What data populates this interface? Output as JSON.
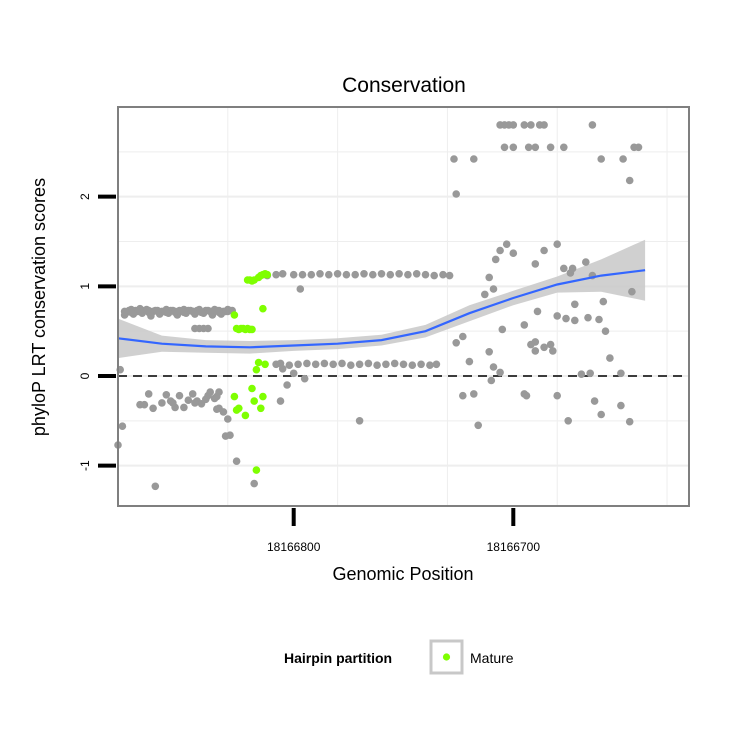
{
  "chart_data": {
    "type": "scatter",
    "title": "Conservation",
    "xlabel": "Genomic Position",
    "ylabel": "phyloP LRT conservation scores",
    "x_reversed": true,
    "xlim": [
      18166880,
      18166620
    ],
    "ylim": [
      -1.45,
      3.0
    ],
    "x_ticks": [
      18166800,
      18166700
    ],
    "x_tick_labels": [
      "18166800",
      "18166700"
    ],
    "y_ticks": [
      -1,
      0,
      1,
      2
    ],
    "y_tick_labels": [
      "-1",
      "0",
      "1",
      "2"
    ],
    "reference_line": {
      "y": 0,
      "style": "dashed"
    },
    "grid": true,
    "legend": {
      "title": "Hairpin partition",
      "placement": "bottom",
      "entries": [
        "Mature"
      ]
    },
    "colors": {
      "background": "#ffffff",
      "point": "#999999",
      "mature": "#7fff00",
      "smooth_line": "#3366ff",
      "ribbon": "#c8c8c8",
      "grid": "#eeeeee",
      "border": "#7f7f7f"
    },
    "series": [
      {
        "name": "Mature",
        "points": [
          [
            18166827,
            0.68
          ],
          [
            18166826,
            0.53
          ],
          [
            18166825,
            0.52
          ],
          [
            18166824,
            0.53
          ],
          [
            18166823,
            0.53
          ],
          [
            18166822,
            0.52
          ],
          [
            18166821,
            0.53
          ],
          [
            18166820,
            0.52
          ],
          [
            18166819,
            0.52
          ],
          [
            18166821,
            1.07
          ],
          [
            18166820,
            1.07
          ],
          [
            18166819,
            1.06
          ],
          [
            18166818,
            1.07
          ],
          [
            18166816,
            1.1
          ],
          [
            18166815,
            1.12
          ],
          [
            18166814,
            1.13
          ],
          [
            18166813,
            1.14
          ],
          [
            18166812,
            1.13
          ],
          [
            18166814,
            0.75
          ],
          [
            18166816,
            0.15
          ],
          [
            18166813,
            0.13
          ],
          [
            18166817,
            0.07
          ],
          [
            18166827,
            -0.23
          ],
          [
            18166826,
            -0.38
          ],
          [
            18166825,
            -0.36
          ],
          [
            18166822,
            -0.44
          ],
          [
            18166819,
            -0.14
          ],
          [
            18166818,
            -0.28
          ],
          [
            18166814,
            -0.23
          ],
          [
            18166815,
            -0.36
          ],
          [
            18166817,
            -1.05
          ]
        ]
      },
      {
        "name": "",
        "points": [
          [
            18166880,
            -0.77
          ],
          [
            18166878,
            -0.56
          ],
          [
            18166879,
            0.07
          ],
          [
            18166877,
            0.68
          ],
          [
            18166876,
            0.71
          ],
          [
            18166874,
            0.74
          ],
          [
            18166872,
            0.73
          ],
          [
            18166870,
            0.75
          ],
          [
            18166868,
            0.73
          ],
          [
            18166866,
            0.73
          ],
          [
            18166864,
            0.72
          ],
          [
            18166862,
            0.73
          ],
          [
            18166860,
            0.72
          ],
          [
            18166858,
            0.74
          ],
          [
            18166856,
            0.73
          ],
          [
            18166854,
            0.71
          ],
          [
            18166852,
            0.73
          ],
          [
            18166850,
            0.74
          ],
          [
            18166848,
            0.73
          ],
          [
            18166846,
            0.72
          ],
          [
            18166844,
            0.73
          ],
          [
            18166842,
            0.71
          ],
          [
            18166840,
            0.73
          ],
          [
            18166838,
            0.72
          ],
          [
            18166836,
            0.74
          ],
          [
            18166834,
            0.73
          ],
          [
            18166832,
            0.72
          ],
          [
            18166830,
            0.74
          ],
          [
            18166828,
            0.73
          ],
          [
            18166875,
            0.73
          ],
          [
            18166871,
            0.72
          ],
          [
            18166867,
            0.74
          ],
          [
            18166863,
            0.73
          ],
          [
            18166859,
            0.72
          ],
          [
            18166855,
            0.73
          ],
          [
            18166851,
            0.72
          ],
          [
            18166847,
            0.73
          ],
          [
            18166843,
            0.74
          ],
          [
            18166839,
            0.73
          ],
          [
            18166835,
            0.73
          ],
          [
            18166831,
            0.72
          ],
          [
            18166829,
            0.73
          ],
          [
            18166873,
            0.69
          ],
          [
            18166869,
            0.7
          ],
          [
            18166865,
            0.67
          ],
          [
            18166861,
            0.69
          ],
          [
            18166857,
            0.7
          ],
          [
            18166853,
            0.68
          ],
          [
            18166849,
            0.7
          ],
          [
            18166845,
            0.69
          ],
          [
            18166841,
            0.7
          ],
          [
            18166837,
            0.68
          ],
          [
            18166833,
            0.69
          ],
          [
            18166845,
            0.53
          ],
          [
            18166843,
            0.53
          ],
          [
            18166841,
            0.53
          ],
          [
            18166839,
            0.53
          ],
          [
            18166877,
            0.72
          ],
          [
            18166874,
            0.71
          ],
          [
            18166870,
            0.72
          ],
          [
            18166866,
            0.71
          ],
          [
            18166862,
            0.72
          ],
          [
            18166858,
            0.71
          ],
          [
            18166854,
            0.72
          ],
          [
            18166850,
            0.71
          ],
          [
            18166846,
            0.72
          ],
          [
            18166842,
            0.71
          ],
          [
            18166838,
            0.72
          ],
          [
            18166834,
            0.71
          ],
          [
            18166830,
            0.72
          ],
          [
            18166870,
            -0.32
          ],
          [
            18166868,
            -0.32
          ],
          [
            18166866,
            -0.2
          ],
          [
            18166864,
            -0.36
          ],
          [
            18166860,
            -0.3
          ],
          [
            18166858,
            -0.21
          ],
          [
            18166856,
            -0.28
          ],
          [
            18166854,
            -0.35
          ],
          [
            18166852,
            -0.22
          ],
          [
            18166850,
            -0.35
          ],
          [
            18166848,
            -0.27
          ],
          [
            18166846,
            -0.2
          ],
          [
            18166844,
            -0.28
          ],
          [
            18166842,
            -0.31
          ],
          [
            18166840,
            -0.26
          ],
          [
            18166839,
            -0.22
          ],
          [
            18166838,
            -0.18
          ],
          [
            18166836,
            -0.25
          ],
          [
            18166835,
            -0.37
          ],
          [
            18166834,
            -0.36
          ],
          [
            18166832,
            -0.4
          ],
          [
            18166830,
            -0.48
          ],
          [
            18166831,
            -0.67
          ],
          [
            18166829,
            -0.66
          ],
          [
            18166826,
            -0.95
          ],
          [
            18166818,
            -1.2
          ],
          [
            18166863,
            -1.23
          ],
          [
            18166834,
            -0.18
          ],
          [
            18166835,
            -0.23
          ],
          [
            18166845,
            -0.3
          ],
          [
            18166855,
            -0.3
          ],
          [
            18166812,
            1.12
          ],
          [
            18166808,
            1.13
          ],
          [
            18166805,
            1.14
          ],
          [
            18166800,
            1.13
          ],
          [
            18166796,
            1.13
          ],
          [
            18166792,
            1.13
          ],
          [
            18166788,
            1.14
          ],
          [
            18166784,
            1.13
          ],
          [
            18166780,
            1.14
          ],
          [
            18166776,
            1.13
          ],
          [
            18166772,
            1.13
          ],
          [
            18166768,
            1.14
          ],
          [
            18166764,
            1.13
          ],
          [
            18166760,
            1.14
          ],
          [
            18166756,
            1.13
          ],
          [
            18166752,
            1.14
          ],
          [
            18166748,
            1.13
          ],
          [
            18166744,
            1.14
          ],
          [
            18166740,
            1.13
          ],
          [
            18166736,
            1.12
          ],
          [
            18166732,
            1.13
          ],
          [
            18166729,
            1.12
          ],
          [
            18166808,
            0.13
          ],
          [
            18166806,
            0.14
          ],
          [
            18166802,
            0.12
          ],
          [
            18166798,
            0.13
          ],
          [
            18166794,
            0.14
          ],
          [
            18166790,
            0.13
          ],
          [
            18166786,
            0.14
          ],
          [
            18166782,
            0.13
          ],
          [
            18166778,
            0.14
          ],
          [
            18166774,
            0.12
          ],
          [
            18166770,
            0.13
          ],
          [
            18166766,
            0.14
          ],
          [
            18166762,
            0.12
          ],
          [
            18166758,
            0.13
          ],
          [
            18166754,
            0.14
          ],
          [
            18166750,
            0.13
          ],
          [
            18166746,
            0.12
          ],
          [
            18166742,
            0.13
          ],
          [
            18166738,
            0.12
          ],
          [
            18166735,
            0.13
          ],
          [
            18166806,
            -0.28
          ],
          [
            18166803,
            -0.1
          ],
          [
            18166797,
            0.97
          ],
          [
            18166805,
            0.08
          ],
          [
            18166800,
            0.03
          ],
          [
            18166795,
            -0.03
          ],
          [
            18166770,
            -0.5
          ],
          [
            18166727,
            2.42
          ],
          [
            18166718,
            2.42
          ],
          [
            18166726,
            2.03
          ],
          [
            18166726,
            0.37
          ],
          [
            18166723,
            0.44
          ],
          [
            18166723,
            -0.22
          ],
          [
            18166716,
            -0.55
          ],
          [
            18166720,
            0.16
          ],
          [
            18166718,
            -0.2
          ],
          [
            18166710,
            -0.05
          ],
          [
            18166713,
            0.91
          ],
          [
            18166711,
            1.1
          ],
          [
            18166709,
            0.97
          ],
          [
            18166708,
            1.3
          ],
          [
            18166706,
            1.4
          ],
          [
            18166703,
            1.47
          ],
          [
            18166700,
            1.37
          ],
          [
            18166705,
            0.52
          ],
          [
            18166709,
            0.1
          ],
          [
            18166711,
            0.27
          ],
          [
            18166706,
            0.04
          ],
          [
            18166690,
            0.28
          ],
          [
            18166690,
            0.38
          ],
          [
            18166692,
            0.35
          ],
          [
            18166695,
            -0.2
          ],
          [
            18166694,
            -0.22
          ],
          [
            18166706,
            2.8
          ],
          [
            18166704,
            2.8
          ],
          [
            18166702,
            2.8
          ],
          [
            18166700,
            2.8
          ],
          [
            18166695,
            2.8
          ],
          [
            18166692,
            2.8
          ],
          [
            18166688,
            2.8
          ],
          [
            18166686,
            2.8
          ],
          [
            18166704,
            2.55
          ],
          [
            18166700,
            2.55
          ],
          [
            18166693,
            2.55
          ],
          [
            18166690,
            2.55
          ],
          [
            18166683,
            2.55
          ],
          [
            18166677,
            2.55
          ],
          [
            18166664,
            2.8
          ],
          [
            18166660,
            2.42
          ],
          [
            18166650,
            2.42
          ],
          [
            18166647,
            2.18
          ],
          [
            18166645,
            2.55
          ],
          [
            18166643,
            2.55
          ],
          [
            18166680,
            1.47
          ],
          [
            18166690,
            1.25
          ],
          [
            18166686,
            1.4
          ],
          [
            18166677,
            1.2
          ],
          [
            18166674,
            1.15
          ],
          [
            18166673,
            1.2
          ],
          [
            18166667,
            1.27
          ],
          [
            18166672,
            0.62
          ],
          [
            18166666,
            0.65
          ],
          [
            18166664,
            1.12
          ],
          [
            18166661,
            0.63
          ],
          [
            18166658,
            0.5
          ],
          [
            18166656,
            0.2
          ],
          [
            18166651,
            0.03
          ],
          [
            18166646,
            0.94
          ],
          [
            18166689,
            0.72
          ],
          [
            18166683,
            0.35
          ],
          [
            18166680,
            0.67
          ],
          [
            18166676,
            0.64
          ],
          [
            18166695,
            0.57
          ],
          [
            18166680,
            -0.22
          ],
          [
            18166675,
            -0.5
          ],
          [
            18166669,
            0.02
          ],
          [
            18166665,
            0.03
          ],
          [
            18166663,
            -0.28
          ],
          [
            18166660,
            -0.43
          ],
          [
            18166651,
            -0.33
          ],
          [
            18166647,
            -0.51
          ],
          [
            18166672,
            0.8
          ],
          [
            18166659,
            0.83
          ],
          [
            18166682,
            0.28
          ],
          [
            18166686,
            0.32
          ]
        ]
      }
    ],
    "smooth": {
      "x": [
        18166880,
        18166860,
        18166840,
        18166820,
        18166800,
        18166780,
        18166760,
        18166740,
        18166720,
        18166700,
        18166680,
        18166660,
        18166640
      ],
      "y": [
        0.42,
        0.36,
        0.33,
        0.32,
        0.34,
        0.36,
        0.4,
        0.5,
        0.7,
        0.87,
        1.02,
        1.12,
        1.18
      ],
      "se": [
        0.22,
        0.09,
        0.07,
        0.07,
        0.06,
        0.06,
        0.06,
        0.07,
        0.09,
        0.08,
        0.09,
        0.18,
        0.34
      ]
    }
  }
}
